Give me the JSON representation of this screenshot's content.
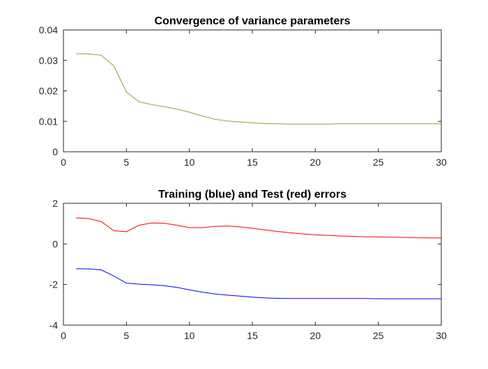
{
  "chart_data": [
    {
      "type": "line",
      "title": "Convergence of variance parameters",
      "xlabel": "",
      "ylabel": "",
      "xlim": [
        0,
        30
      ],
      "ylim": [
        0,
        0.04
      ],
      "xticks": [
        0,
        5,
        10,
        15,
        20,
        25,
        30
      ],
      "xtick_labels": [
        "0",
        "5",
        "10",
        "15",
        "20",
        "25",
        "30"
      ],
      "yticks": [
        0,
        0.01,
        0.02,
        0.03,
        0.04
      ],
      "ytick_labels": [
        "0",
        "0.01",
        "0.02",
        "0.03",
        "0.04"
      ],
      "grid": false,
      "series": [
        {
          "color": "#77ac30",
          "x": [
            1,
            2,
            3,
            4,
            5,
            6,
            7,
            8,
            9,
            10,
            11,
            12,
            13,
            14,
            15,
            16,
            17,
            18,
            19,
            20,
            21,
            22,
            23,
            24,
            25,
            26,
            27,
            28,
            29,
            30
          ],
          "values": [
            0.0322,
            0.0321,
            0.0317,
            0.0282,
            0.0196,
            0.0164,
            0.0155,
            0.0148,
            0.014,
            0.013,
            0.0118,
            0.0107,
            0.0101,
            0.0098,
            0.0095,
            0.0093,
            0.0092,
            0.0091,
            0.0091,
            0.0091,
            0.0091,
            0.0092,
            0.0092,
            0.0092,
            0.0092,
            0.0092,
            0.0092,
            0.0092,
            0.0092,
            0.0092
          ]
        }
      ]
    },
    {
      "type": "line",
      "title": "Training (blue) and Test (red) errors",
      "xlabel": "",
      "ylabel": "",
      "xlim": [
        0,
        30
      ],
      "ylim": [
        -4,
        2
      ],
      "xticks": [
        0,
        5,
        10,
        15,
        20,
        25,
        30
      ],
      "xtick_labels": [
        "0",
        "5",
        "10",
        "15",
        "20",
        "25",
        "30"
      ],
      "yticks": [
        -4,
        -2,
        0,
        2
      ],
      "ytick_labels": [
        "-4",
        "-2",
        "0",
        "2"
      ],
      "grid": false,
      "series": [
        {
          "color": "#ff0000",
          "x": [
            1,
            2,
            3,
            4,
            5,
            6,
            7,
            8,
            9,
            10,
            11,
            12,
            13,
            14,
            15,
            16,
            17,
            18,
            19,
            20,
            21,
            22,
            23,
            24,
            25,
            26,
            27,
            28,
            29,
            30
          ],
          "values": [
            1.28,
            1.25,
            1.1,
            0.65,
            0.6,
            0.92,
            1.03,
            1.02,
            0.92,
            0.8,
            0.8,
            0.86,
            0.88,
            0.84,
            0.77,
            0.69,
            0.61,
            0.55,
            0.49,
            0.45,
            0.42,
            0.39,
            0.37,
            0.35,
            0.34,
            0.33,
            0.32,
            0.31,
            0.3,
            0.29
          ]
        },
        {
          "color": "#0000ff",
          "x": [
            1,
            2,
            3,
            4,
            5,
            6,
            7,
            8,
            9,
            10,
            11,
            12,
            13,
            14,
            15,
            16,
            17,
            18,
            19,
            20,
            21,
            22,
            23,
            24,
            25,
            26,
            27,
            28,
            29,
            30
          ],
          "values": [
            -1.22,
            -1.23,
            -1.28,
            -1.58,
            -1.93,
            -1.98,
            -2.01,
            -2.06,
            -2.14,
            -2.26,
            -2.37,
            -2.46,
            -2.52,
            -2.57,
            -2.62,
            -2.66,
            -2.68,
            -2.69,
            -2.69,
            -2.69,
            -2.69,
            -2.69,
            -2.69,
            -2.69,
            -2.7,
            -2.7,
            -2.7,
            -2.7,
            -2.7,
            -2.7
          ]
        }
      ]
    }
  ]
}
